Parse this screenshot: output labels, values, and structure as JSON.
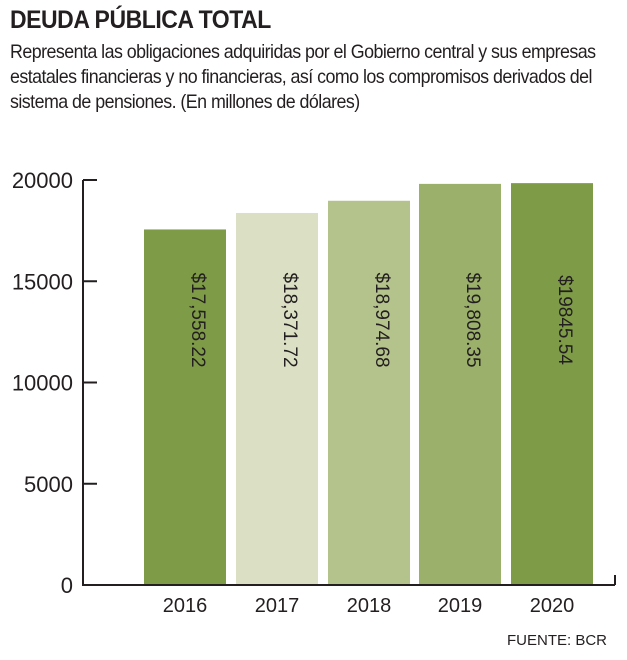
{
  "chart_data": {
    "type": "bar",
    "title": "DEUDA PÚBLICA TOTAL",
    "subtitle": "Representa las obligaciones adquiridas por el Gobierno central y sus empresas estatales financieras y no financieras, así como los compromisos derivados del sistema de pensiones. (En millones de dólares)",
    "categories": [
      "2016",
      "2017",
      "2018",
      "2019",
      "2020"
    ],
    "values": [
      17558.22,
      18371.72,
      18974.68,
      19808.35,
      19845.54
    ],
    "data_labels": [
      "$17,558.22",
      "$18,371.72",
      "$18,974.68",
      "$19,808.35",
      "$19845.54"
    ],
    "colors": [
      "#7e9b47",
      "#dbe0c4",
      "#b4c28c",
      "#9bb06a",
      "#7e9b47"
    ],
    "yticks": [
      0,
      5000,
      10000,
      15000,
      20000
    ],
    "ylim": [
      0,
      20000
    ],
    "xlabel": "",
    "ylabel": "",
    "grid": false,
    "source": "FUENTE: BCR"
  }
}
